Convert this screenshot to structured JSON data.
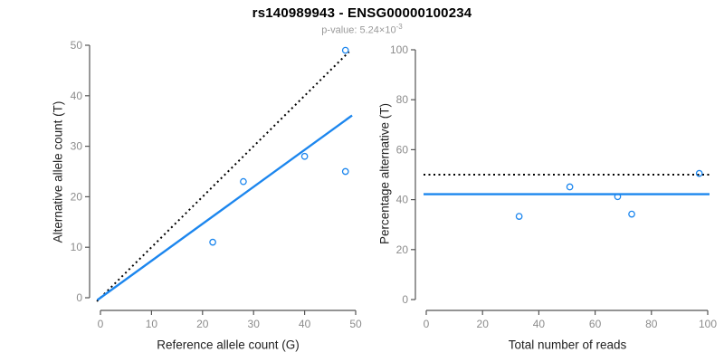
{
  "title": "rs140989943 - ENSG00000100234",
  "subtitle": {
    "text_main": "p-value: 5.24×10",
    "exponent": "-3"
  },
  "colors": {
    "title": "#000000",
    "subtitle": "#999999",
    "axis": "#555555",
    "tick_label": "#8c8c8c",
    "axis_label": "#222222",
    "fit_blue": "#1C86EE",
    "dotted_black": "#000000",
    "background": "#ffffff"
  },
  "chart_data": [
    {
      "type": "scatter",
      "panel": "left",
      "xlabel": "Reference allele count (G)",
      "ylabel": "Alternative allele count (T)",
      "xlim": [
        0,
        50
      ],
      "ylim": [
        0,
        50
      ],
      "xticks": [
        0,
        10,
        20,
        30,
        40,
        50
      ],
      "yticks": [
        0,
        10,
        20,
        30,
        40,
        50
      ],
      "grid": false,
      "legend": "none",
      "points": [
        [
          22,
          11
        ],
        [
          28,
          23
        ],
        [
          40,
          28
        ],
        [
          48,
          25
        ],
        [
          48,
          49
        ]
      ],
      "lines": [
        {
          "name": "identity-line",
          "style": "dotted",
          "color": "#000000",
          "from": [
            -0.7,
            -0.7
          ],
          "to": [
            48.7,
            48.7
          ],
          "meaning": "y = x (50% line)"
        },
        {
          "name": "fit-line",
          "style": "solid",
          "color": "#1C86EE",
          "from": [
            -0.6,
            -0.45
          ],
          "to": [
            49.3,
            36.1
          ],
          "slope": 0.731,
          "meaning": "fitted allelic ratio"
        }
      ]
    },
    {
      "type": "scatter",
      "panel": "right",
      "xlabel": "Total number of reads",
      "ylabel": "Percentage alternative (T)",
      "xlim": [
        0,
        100
      ],
      "ylim": [
        0,
        100
      ],
      "xticks": [
        0,
        20,
        40,
        60,
        80,
        100
      ],
      "yticks": [
        0,
        20,
        40,
        60,
        80,
        100
      ],
      "grid": false,
      "legend": "none",
      "points": [
        [
          33,
          33.3
        ],
        [
          51,
          45.1
        ],
        [
          68,
          41.2
        ],
        [
          73,
          34.2
        ],
        [
          97,
          50.5
        ]
      ],
      "lines": [
        {
          "name": "null-line",
          "style": "dotted",
          "color": "#000000",
          "y": 50,
          "meaning": "50% null expectation"
        },
        {
          "name": "fit-line",
          "style": "solid",
          "color": "#1C86EE",
          "y": 42.2,
          "meaning": "estimated alternative percentage"
        }
      ]
    }
  ]
}
